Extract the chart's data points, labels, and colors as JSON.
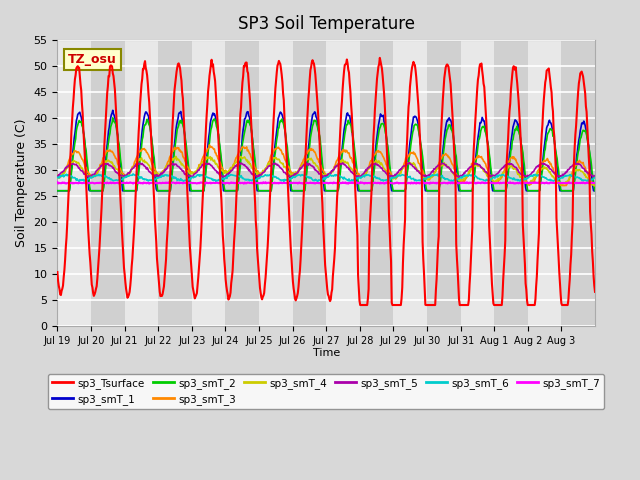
{
  "title": "SP3 Soil Temperature",
  "xlabel": "Time",
  "ylabel": "Soil Temperature (C)",
  "ylim": [
    0,
    55
  ],
  "yticks": [
    0,
    5,
    10,
    15,
    20,
    25,
    30,
    35,
    40,
    45,
    50,
    55
  ],
  "tz_label": "TZ_osu",
  "legend_entries": [
    "sp3_Tsurface",
    "sp3_smT_1",
    "sp3_smT_2",
    "sp3_smT_3",
    "sp3_smT_4",
    "sp3_smT_5",
    "sp3_smT_6",
    "sp3_smT_7"
  ],
  "line_colors": [
    "#ff0000",
    "#0000cc",
    "#00cc00",
    "#ff8800",
    "#cccc00",
    "#aa00aa",
    "#00cccc",
    "#ff00ff"
  ],
  "x_tick_labels": [
    "Jul 19",
    "Jul 20",
    "Jul 21",
    "Jul 22",
    "Jul 23",
    "Jul 24",
    "Jul 25",
    "Jul 26",
    "Jul 27",
    "Jul 28",
    "Jul 29",
    "Jul 30",
    "Jul 31",
    "Aug 1",
    "Aug 2",
    "Aug 3"
  ],
  "n_days": 16,
  "pts_per_day": 48
}
